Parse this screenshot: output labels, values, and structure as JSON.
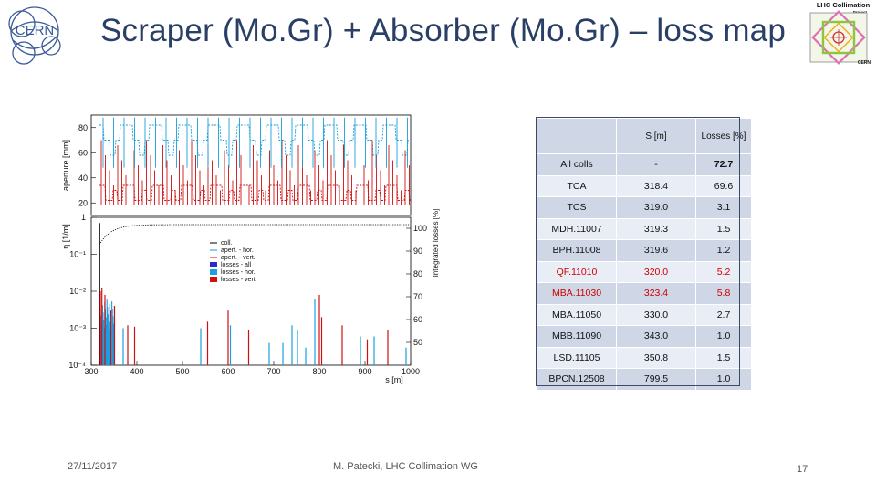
{
  "slide": {
    "title": "Scraper (Mo.Gr) + Absorber (Mo.Gr) – loss map",
    "date": "27/11/2017",
    "author": "M. Patecki, LHC Collimation WG",
    "page": "17"
  },
  "logos": {
    "cern": "CERN",
    "lhc_collimation": "LHC Collimation",
    "project": "Project",
    "cern_small": "CERN"
  },
  "table": {
    "headers": [
      "",
      "S [m]",
      "Losses [%]"
    ],
    "rows": [
      {
        "name": "All colls",
        "s": "-",
        "loss": "72.7",
        "highlight": false,
        "bold": true
      },
      {
        "name": "TCA",
        "s": "318.4",
        "loss": "69.6",
        "highlight": false,
        "bold": false
      },
      {
        "name": "TCS",
        "s": "319.0",
        "loss": "3.1",
        "highlight": false,
        "bold": false
      },
      {
        "name": "MDH.11007",
        "s": "319.3",
        "loss": "1.5",
        "highlight": false,
        "bold": false
      },
      {
        "name": "BPH.11008",
        "s": "319.6",
        "loss": "1.2",
        "highlight": false,
        "bold": false
      },
      {
        "name": "QF.11010",
        "s": "320.0",
        "loss": "5.2",
        "highlight": true,
        "bold": false
      },
      {
        "name": "MBA.11030",
        "s": "323.4",
        "loss": "5.8",
        "highlight": true,
        "bold": false
      },
      {
        "name": "MBA.11050",
        "s": "330.0",
        "loss": "2.7",
        "highlight": false,
        "bold": false
      },
      {
        "name": "MBB.11090",
        "s": "343.0",
        "loss": "1.0",
        "highlight": false,
        "bold": false
      },
      {
        "name": "LSD.11105",
        "s": "350.8",
        "loss": "1.5",
        "highlight": false,
        "bold": false
      },
      {
        "name": "BPCN.12508",
        "s": "799.5",
        "loss": "1.0",
        "highlight": false,
        "bold": false
      }
    ]
  },
  "chart_data": {
    "type": "bar",
    "xlabel": "s [m]",
    "xlim": [
      300,
      1000
    ],
    "x_ticks": [
      "300",
      "400",
      "500",
      "600",
      "700",
      "800",
      "900",
      "1000"
    ],
    "top_panel": {
      "ylabel": "aperture [mm]",
      "ylim": [
        10,
        90
      ],
      "y_ticks": [
        "20",
        "40",
        "60",
        "80"
      ]
    },
    "bottom_panel": {
      "ylabel": "η [1/m]",
      "y_ticks_left": [
        "1",
        "10⁻¹",
        "10⁻²",
        "10⁻³",
        "10⁻⁴"
      ],
      "ylabel_right": "Integrated losses [%]",
      "y_ticks_right": [
        "100",
        "90",
        "80",
        "70",
        "60",
        "50"
      ]
    },
    "legend": [
      "coll.",
      "apert. - hor.",
      "apert. - vert.",
      "losses - all",
      "losses - hor.",
      "losses - vert."
    ],
    "legend_placement": "top-center",
    "colors": {
      "coll": "#000000",
      "apert_hor": "#1a9fd8",
      "apert_vert": "#d01010",
      "losses_all": "#2a2ad0",
      "losses_hor": "#1a9fe0",
      "losses_vert": "#d01010"
    },
    "loss_spikes": [
      {
        "s": 318.4,
        "eta": 0.7,
        "type": "coll"
      },
      {
        "s": 320.0,
        "eta": 0.01,
        "type": "vert"
      },
      {
        "s": 323.4,
        "eta": 0.012,
        "type": "vert"
      },
      {
        "s": 330.0,
        "eta": 0.008,
        "type": "vert"
      },
      {
        "s": 343.0,
        "eta": 0.003,
        "type": "vert"
      },
      {
        "s": 350.8,
        "eta": 0.004,
        "type": "vert"
      },
      {
        "s": 370,
        "eta": 0.001,
        "type": "hor"
      },
      {
        "s": 380,
        "eta": 0.0012,
        "type": "vert"
      },
      {
        "s": 395,
        "eta": 0.0011,
        "type": "vert"
      },
      {
        "s": 540,
        "eta": 0.001,
        "type": "hor"
      },
      {
        "s": 555,
        "eta": 0.0015,
        "type": "vert"
      },
      {
        "s": 600,
        "eta": 0.003,
        "type": "vert"
      },
      {
        "s": 605,
        "eta": 0.0012,
        "type": "hor"
      },
      {
        "s": 645,
        "eta": 0.0009,
        "type": "vert"
      },
      {
        "s": 690,
        "eta": 0.0004,
        "type": "hor"
      },
      {
        "s": 720,
        "eta": 0.0004,
        "type": "hor"
      },
      {
        "s": 740,
        "eta": 0.0012,
        "type": "hor"
      },
      {
        "s": 752,
        "eta": 0.0009,
        "type": "hor"
      },
      {
        "s": 770,
        "eta": 0.0003,
        "type": "hor"
      },
      {
        "s": 790,
        "eta": 0.006,
        "type": "hor"
      },
      {
        "s": 800,
        "eta": 0.008,
        "type": "vert"
      },
      {
        "s": 805,
        "eta": 0.002,
        "type": "vert"
      },
      {
        "s": 850,
        "eta": 0.0012,
        "type": "vert"
      },
      {
        "s": 890,
        "eta": 0.0006,
        "type": "hor"
      },
      {
        "s": 905,
        "eta": 0.0005,
        "type": "vert"
      },
      {
        "s": 920,
        "eta": 0.0006,
        "type": "hor"
      },
      {
        "s": 950,
        "eta": 0.0009,
        "type": "vert"
      },
      {
        "s": 990,
        "eta": 0.0003,
        "type": "hor"
      }
    ]
  }
}
